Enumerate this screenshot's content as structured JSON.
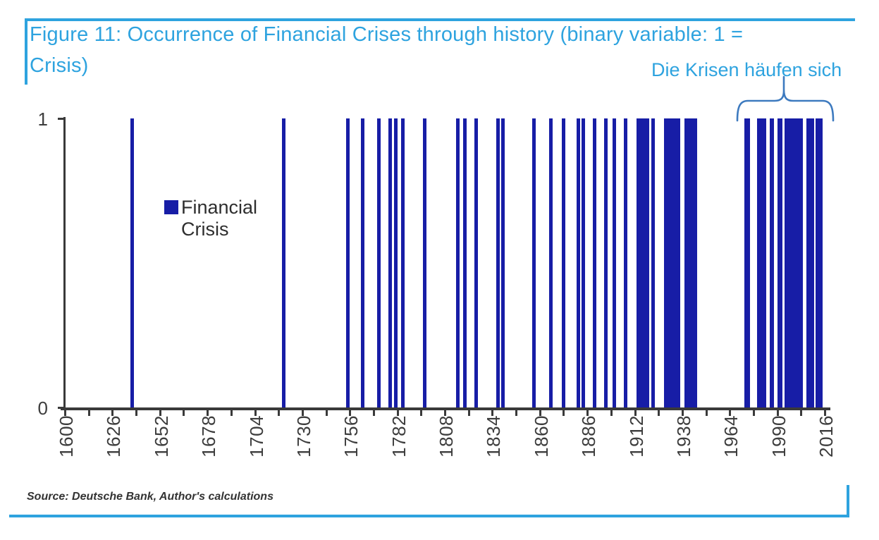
{
  "figure": {
    "title_line1": "Figure 11: Occurrence of Financial Crises through history (binary variable: 1 =",
    "title_line2": "Crisis)",
    "annotation": "Die Krisen häufen sich",
    "source": "Source: Deutsche Bank, Author's calculations"
  },
  "legend": {
    "lines": [
      "Financial",
      "Crisis"
    ]
  },
  "colors": {
    "accent_blue": "#2ea3df",
    "bar_navy": "#171da6",
    "brace_blue": "#3d7abf",
    "axis_dark": "#3a3a3a",
    "label_dark": "#3d3d3d"
  },
  "chart_data": {
    "type": "bar",
    "title": "Occurrence of Financial Crises through history (binary variable: 1 = Crisis)",
    "xlabel": "",
    "ylabel": "",
    "grid": false,
    "legend_position": "inside-left",
    "x_axis": {
      "min": 1600,
      "max": 2016,
      "labeled_tick_step": 26,
      "minor_tick_step": 13,
      "tick_labels": [
        "1600",
        "1626",
        "1652",
        "1678",
        "1704",
        "1730",
        "1756",
        "1782",
        "1808",
        "1834",
        "1860",
        "1886",
        "1912",
        "1938",
        "1964",
        "1990",
        "2016"
      ]
    },
    "y_axis": {
      "min": 0,
      "max": 1,
      "tick_labels": [
        "0",
        "1"
      ]
    },
    "series": [
      {
        "name": "Financial Crisis",
        "crisis_value": 1,
        "crisis_periods": [
          {
            "start": 1637,
            "end": 1637
          },
          {
            "start": 1720,
            "end": 1720
          },
          {
            "start": 1755,
            "end": 1755
          },
          {
            "start": 1763,
            "end": 1763
          },
          {
            "start": 1772,
            "end": 1772
          },
          {
            "start": 1778,
            "end": 1778
          },
          {
            "start": 1781,
            "end": 1781
          },
          {
            "start": 1785,
            "end": 1785
          },
          {
            "start": 1797,
            "end": 1798
          },
          {
            "start": 1815,
            "end": 1815
          },
          {
            "start": 1819,
            "end": 1819
          },
          {
            "start": 1825,
            "end": 1825
          },
          {
            "start": 1837,
            "end": 1837
          },
          {
            "start": 1840,
            "end": 1840
          },
          {
            "start": 1857,
            "end": 1857
          },
          {
            "start": 1866,
            "end": 1866
          },
          {
            "start": 1873,
            "end": 1873
          },
          {
            "start": 1881,
            "end": 1881
          },
          {
            "start": 1884,
            "end": 1884
          },
          {
            "start": 1890,
            "end": 1890
          },
          {
            "start": 1896,
            "end": 1896
          },
          {
            "start": 1901,
            "end": 1901
          },
          {
            "start": 1907,
            "end": 1907
          },
          {
            "start": 1914,
            "end": 1920
          },
          {
            "start": 1922,
            "end": 1922
          },
          {
            "start": 1929,
            "end": 1937
          },
          {
            "start": 1940,
            "end": 1946
          },
          {
            "start": 1973,
            "end": 1975
          },
          {
            "start": 1980,
            "end": 1980
          },
          {
            "start": 1982,
            "end": 1984
          },
          {
            "start": 1987,
            "end": 1988
          },
          {
            "start": 1991,
            "end": 1993
          },
          {
            "start": 1995,
            "end": 1997
          },
          {
            "start": 1998,
            "end": 2000
          },
          {
            "start": 2001,
            "end": 2004
          },
          {
            "start": 2007,
            "end": 2010
          },
          {
            "start": 2012,
            "end": 2015
          }
        ]
      }
    ],
    "annotation": {
      "text": "Die Krisen häufen sich",
      "span_start_year": 1970,
      "span_end_year": 2016
    }
  }
}
